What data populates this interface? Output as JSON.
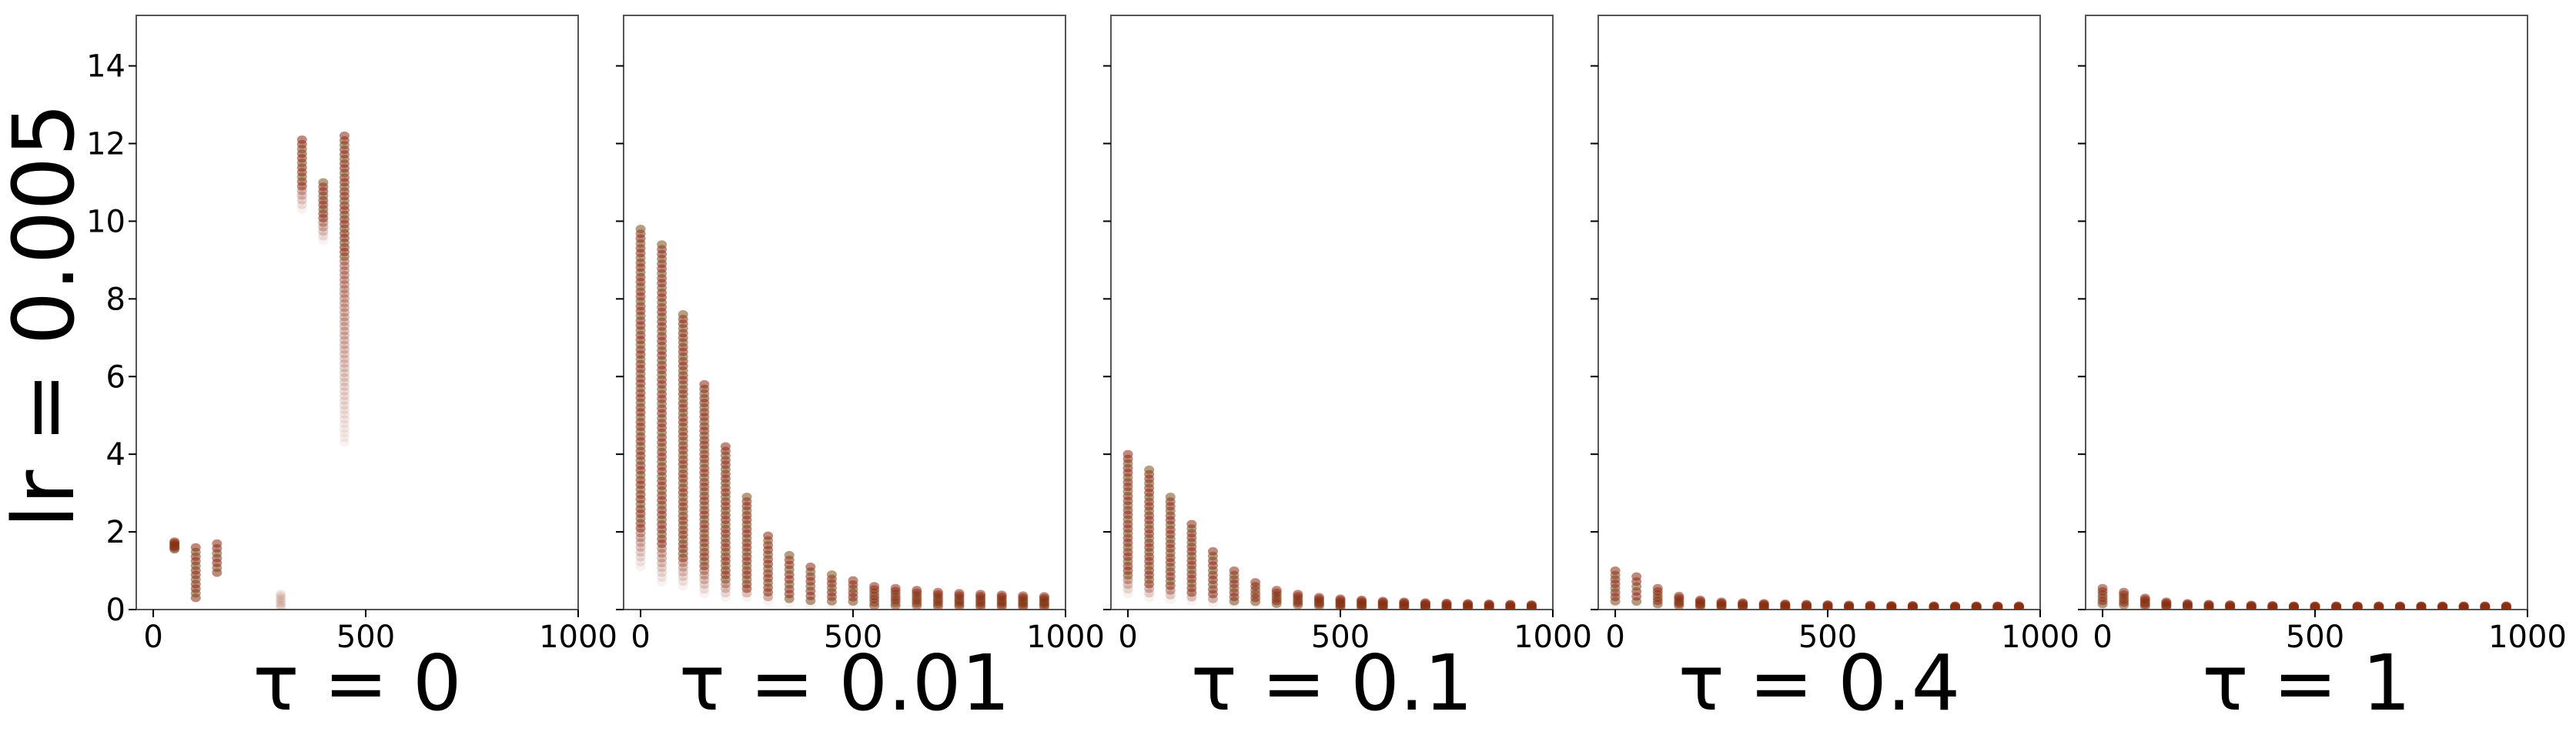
{
  "figure": {
    "row_label": "lr = 0.005",
    "colors": {
      "points": "#8b2a12",
      "points_mid": "#7a4a1a",
      "axes": "#000000",
      "background": "#ffffff"
    }
  },
  "chart_data": [
    {
      "type": "scatter",
      "title": "τ = 0",
      "xlim": [
        -40,
        1000
      ],
      "ylim": [
        0,
        15.3
      ],
      "xticks": [
        0,
        500,
        1000
      ],
      "yticks": [
        0,
        2,
        4,
        6,
        8,
        10,
        12,
        14
      ],
      "show_yticklabels": true,
      "ylabel": "lr = 0.005",
      "series": [
        {
          "x": 50,
          "ymin": 1.55,
          "ymax": 1.75,
          "fade_low": 1.55
        },
        {
          "x": 100,
          "ymin": 0.3,
          "ymax": 1.6,
          "fade_low": 0.3
        },
        {
          "x": 150,
          "ymin": 0.95,
          "ymax": 1.7,
          "fade_low": 0.95
        },
        {
          "x": 300,
          "ymin": 0.05,
          "ymax": 0.4,
          "fade_low": 0.4,
          "faint": true
        },
        {
          "x": 350,
          "ymin": 10.3,
          "ymax": 12.1,
          "fade_low": 10.9
        },
        {
          "x": 400,
          "ymin": 9.5,
          "ymax": 11.0,
          "fade_low": 10.0
        },
        {
          "x": 450,
          "ymin": 4.3,
          "ymax": 12.2,
          "fade_low": 9.0
        }
      ]
    },
    {
      "type": "scatter",
      "title": "τ = 0.01",
      "xlim": [
        -40,
        1000
      ],
      "ylim": [
        0,
        15.3
      ],
      "xticks": [
        0,
        500,
        1000
      ],
      "yticks": [
        0,
        2,
        4,
        6,
        8,
        10,
        12,
        14
      ],
      "show_yticklabels": false,
      "series": [
        {
          "x": 0,
          "ymin": 1.1,
          "ymax": 9.8,
          "fade_low": 2.0
        },
        {
          "x": 50,
          "ymin": 0.7,
          "ymax": 9.4,
          "fade_low": 1.6
        },
        {
          "x": 100,
          "ymin": 0.6,
          "ymax": 7.6,
          "fade_low": 1.3
        },
        {
          "x": 150,
          "ymin": 0.4,
          "ymax": 5.8,
          "fade_low": 1.0
        },
        {
          "x": 200,
          "ymin": 0.3,
          "ymax": 4.2,
          "fade_low": 0.7
        },
        {
          "x": 250,
          "ymin": 0.3,
          "ymax": 2.9,
          "fade_low": 0.5
        },
        {
          "x": 300,
          "ymin": 0.2,
          "ymax": 1.9,
          "fade_low": 0.35
        },
        {
          "x": 350,
          "ymin": 0.15,
          "ymax": 1.4,
          "fade_low": 0.25
        },
        {
          "x": 400,
          "ymin": 0.1,
          "ymax": 1.1,
          "fade_low": 0.2
        },
        {
          "x": 450,
          "ymin": 0.1,
          "ymax": 0.9,
          "fade_low": 0.15
        },
        {
          "x": 500,
          "ymin": 0.1,
          "ymax": 0.75,
          "fade_low": 0.12
        },
        {
          "x": 550,
          "ymin": 0.1,
          "ymax": 0.6,
          "fade_low": 0.1
        },
        {
          "x": 600,
          "ymin": 0.1,
          "ymax": 0.55,
          "fade_low": 0.1
        },
        {
          "x": 650,
          "ymin": 0.1,
          "ymax": 0.5,
          "fade_low": 0.1
        },
        {
          "x": 700,
          "ymin": 0.08,
          "ymax": 0.45,
          "fade_low": 0.08
        },
        {
          "x": 750,
          "ymin": 0.08,
          "ymax": 0.42,
          "fade_low": 0.08
        },
        {
          "x": 800,
          "ymin": 0.07,
          "ymax": 0.4,
          "fade_low": 0.07
        },
        {
          "x": 850,
          "ymin": 0.07,
          "ymax": 0.38,
          "fade_low": 0.07
        },
        {
          "x": 900,
          "ymin": 0.06,
          "ymax": 0.36,
          "fade_low": 0.06
        },
        {
          "x": 950,
          "ymin": 0.06,
          "ymax": 0.34,
          "fade_low": 0.06
        }
      ]
    },
    {
      "type": "scatter",
      "title": "τ = 0.1",
      "xlim": [
        -40,
        1000
      ],
      "ylim": [
        0,
        15.3
      ],
      "xticks": [
        0,
        500,
        1000
      ],
      "yticks": [
        0,
        2,
        4,
        6,
        8,
        10,
        12,
        14
      ],
      "show_yticklabels": false,
      "series": [
        {
          "x": 0,
          "ymin": 0.4,
          "ymax": 4.0,
          "fade_low": 0.8
        },
        {
          "x": 50,
          "ymin": 0.3,
          "ymax": 3.6,
          "fade_low": 0.6
        },
        {
          "x": 100,
          "ymin": 0.25,
          "ymax": 2.9,
          "fade_low": 0.5
        },
        {
          "x": 150,
          "ymin": 0.2,
          "ymax": 2.2,
          "fade_low": 0.4
        },
        {
          "x": 200,
          "ymin": 0.15,
          "ymax": 1.5,
          "fade_low": 0.3
        },
        {
          "x": 250,
          "ymin": 0.1,
          "ymax": 1.0,
          "fade_low": 0.2
        },
        {
          "x": 300,
          "ymin": 0.1,
          "ymax": 0.7,
          "fade_low": 0.15
        },
        {
          "x": 350,
          "ymin": 0.08,
          "ymax": 0.5,
          "fade_low": 0.1
        },
        {
          "x": 400,
          "ymin": 0.06,
          "ymax": 0.4,
          "fade_low": 0.08
        },
        {
          "x": 450,
          "ymin": 0.05,
          "ymax": 0.32,
          "fade_low": 0.06
        },
        {
          "x": 500,
          "ymin": 0.05,
          "ymax": 0.28,
          "fade_low": 0.05
        },
        {
          "x": 550,
          "ymin": 0.05,
          "ymax": 0.25,
          "fade_low": 0.05
        },
        {
          "x": 600,
          "ymin": 0.04,
          "ymax": 0.22,
          "fade_low": 0.04
        },
        {
          "x": 650,
          "ymin": 0.04,
          "ymax": 0.2,
          "fade_low": 0.04
        },
        {
          "x": 700,
          "ymin": 0.04,
          "ymax": 0.18,
          "fade_low": 0.04
        },
        {
          "x": 750,
          "ymin": 0.03,
          "ymax": 0.17,
          "fade_low": 0.03
        },
        {
          "x": 800,
          "ymin": 0.03,
          "ymax": 0.16,
          "fade_low": 0.03
        },
        {
          "x": 850,
          "ymin": 0.03,
          "ymax": 0.15,
          "fade_low": 0.03
        },
        {
          "x": 900,
          "ymin": 0.03,
          "ymax": 0.14,
          "fade_low": 0.03
        },
        {
          "x": 950,
          "ymin": 0.03,
          "ymax": 0.13,
          "fade_low": 0.03
        }
      ]
    },
    {
      "type": "scatter",
      "title": "τ = 0.4",
      "xlim": [
        -40,
        1000
      ],
      "ylim": [
        0,
        15.3
      ],
      "xticks": [
        0,
        500,
        1000
      ],
      "yticks": [
        0,
        2,
        4,
        6,
        8,
        10,
        12,
        14
      ],
      "show_yticklabels": false,
      "series": [
        {
          "x": 0,
          "ymin": 0.1,
          "ymax": 1.0,
          "fade_low": 0.2
        },
        {
          "x": 50,
          "ymin": 0.08,
          "ymax": 0.85,
          "fade_low": 0.15
        },
        {
          "x": 100,
          "ymin": 0.06,
          "ymax": 0.55,
          "fade_low": 0.1
        },
        {
          "x": 150,
          "ymin": 0.05,
          "ymax": 0.35,
          "fade_low": 0.08
        },
        {
          "x": 200,
          "ymin": 0.04,
          "ymax": 0.25,
          "fade_low": 0.06
        },
        {
          "x": 250,
          "ymin": 0.03,
          "ymax": 0.2,
          "fade_low": 0.05
        },
        {
          "x": 300,
          "ymin": 0.03,
          "ymax": 0.18,
          "fade_low": 0.04
        },
        {
          "x": 350,
          "ymin": 0.03,
          "ymax": 0.16,
          "fade_low": 0.03
        },
        {
          "x": 400,
          "ymin": 0.03,
          "ymax": 0.15,
          "fade_low": 0.03
        },
        {
          "x": 450,
          "ymin": 0.03,
          "ymax": 0.14,
          "fade_low": 0.03
        },
        {
          "x": 500,
          "ymin": 0.03,
          "ymax": 0.13,
          "fade_low": 0.03
        },
        {
          "x": 550,
          "ymin": 0.03,
          "ymax": 0.12,
          "fade_low": 0.03
        },
        {
          "x": 600,
          "ymin": 0.03,
          "ymax": 0.12,
          "fade_low": 0.03
        },
        {
          "x": 650,
          "ymin": 0.03,
          "ymax": 0.11,
          "fade_low": 0.03
        },
        {
          "x": 700,
          "ymin": 0.03,
          "ymax": 0.11,
          "fade_low": 0.03
        },
        {
          "x": 750,
          "ymin": 0.03,
          "ymax": 0.1,
          "fade_low": 0.03
        },
        {
          "x": 800,
          "ymin": 0.03,
          "ymax": 0.1,
          "fade_low": 0.03
        },
        {
          "x": 850,
          "ymin": 0.03,
          "ymax": 0.1,
          "fade_low": 0.03
        },
        {
          "x": 900,
          "ymin": 0.03,
          "ymax": 0.1,
          "fade_low": 0.03
        },
        {
          "x": 950,
          "ymin": 0.03,
          "ymax": 0.1,
          "fade_low": 0.03
        }
      ]
    },
    {
      "type": "scatter",
      "title": "τ = 1",
      "xlim": [
        -40,
        1000
      ],
      "ylim": [
        0,
        15.3
      ],
      "xticks": [
        0,
        500,
        1000
      ],
      "yticks": [
        0,
        2,
        4,
        6,
        8,
        10,
        12,
        14
      ],
      "show_yticklabels": false,
      "series": [
        {
          "x": 0,
          "ymin": 0.06,
          "ymax": 0.55,
          "fade_low": 0.1
        },
        {
          "x": 50,
          "ymin": 0.05,
          "ymax": 0.45,
          "fade_low": 0.08
        },
        {
          "x": 100,
          "ymin": 0.04,
          "ymax": 0.3,
          "fade_low": 0.06
        },
        {
          "x": 150,
          "ymin": 0.03,
          "ymax": 0.2,
          "fade_low": 0.05
        },
        {
          "x": 200,
          "ymin": 0.03,
          "ymax": 0.16,
          "fade_low": 0.04
        },
        {
          "x": 250,
          "ymin": 0.03,
          "ymax": 0.14,
          "fade_low": 0.03
        },
        {
          "x": 300,
          "ymin": 0.03,
          "ymax": 0.13,
          "fade_low": 0.03
        },
        {
          "x": 350,
          "ymin": 0.03,
          "ymax": 0.12,
          "fade_low": 0.03
        },
        {
          "x": 400,
          "ymin": 0.03,
          "ymax": 0.11,
          "fade_low": 0.03
        },
        {
          "x": 450,
          "ymin": 0.03,
          "ymax": 0.1,
          "fade_low": 0.03
        },
        {
          "x": 500,
          "ymin": 0.03,
          "ymax": 0.1,
          "fade_low": 0.03
        },
        {
          "x": 550,
          "ymin": 0.03,
          "ymax": 0.1,
          "fade_low": 0.03
        },
        {
          "x": 600,
          "ymin": 0.03,
          "ymax": 0.1,
          "fade_low": 0.03
        },
        {
          "x": 650,
          "ymin": 0.03,
          "ymax": 0.1,
          "fade_low": 0.03
        },
        {
          "x": 700,
          "ymin": 0.03,
          "ymax": 0.1,
          "fade_low": 0.03
        },
        {
          "x": 750,
          "ymin": 0.03,
          "ymax": 0.1,
          "fade_low": 0.03
        },
        {
          "x": 800,
          "ymin": 0.03,
          "ymax": 0.1,
          "fade_low": 0.03
        },
        {
          "x": 850,
          "ymin": 0.03,
          "ymax": 0.1,
          "fade_low": 0.03
        },
        {
          "x": 900,
          "ymin": 0.03,
          "ymax": 0.1,
          "fade_low": 0.03
        },
        {
          "x": 950,
          "ymin": 0.03,
          "ymax": 0.1,
          "fade_low": 0.03
        }
      ]
    }
  ]
}
